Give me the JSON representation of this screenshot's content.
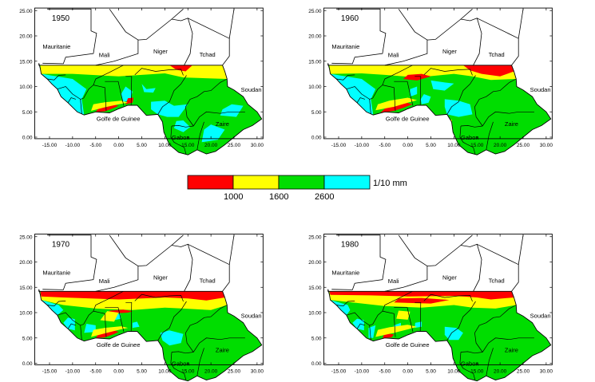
{
  "colors": {
    "low": "#ff0000",
    "mid": "#ffff00",
    "high": "#00dd00",
    "vhigh": "#00ffff",
    "border": "#000000"
  },
  "axis": {
    "x_ticks": [
      "-15.00",
      "-10.00",
      "-5.00",
      "0.00",
      "5.00",
      "10.00",
      "15.00",
      "20.00",
      "25.00",
      "30.00"
    ],
    "y_ticks": [
      "0.00",
      "5.00",
      "10.00",
      "15.00",
      "20.00",
      "25.00"
    ]
  },
  "labels": {
    "mauritanie": "Mauritanie",
    "mali": "Mali",
    "niger": "Niger",
    "tchad": "Tchad",
    "soudan": "Soudan",
    "golfe": "Golfe de Guinee",
    "zaire": "Zaire",
    "gabon": "Gabon"
  },
  "panels": [
    {
      "year": "1950"
    },
    {
      "year": "1960"
    },
    {
      "year": "1970"
    },
    {
      "year": "1980"
    }
  ],
  "legend": {
    "thresholds": [
      "1000",
      "1600",
      "2600"
    ],
    "unit": "1/10 mm"
  }
}
